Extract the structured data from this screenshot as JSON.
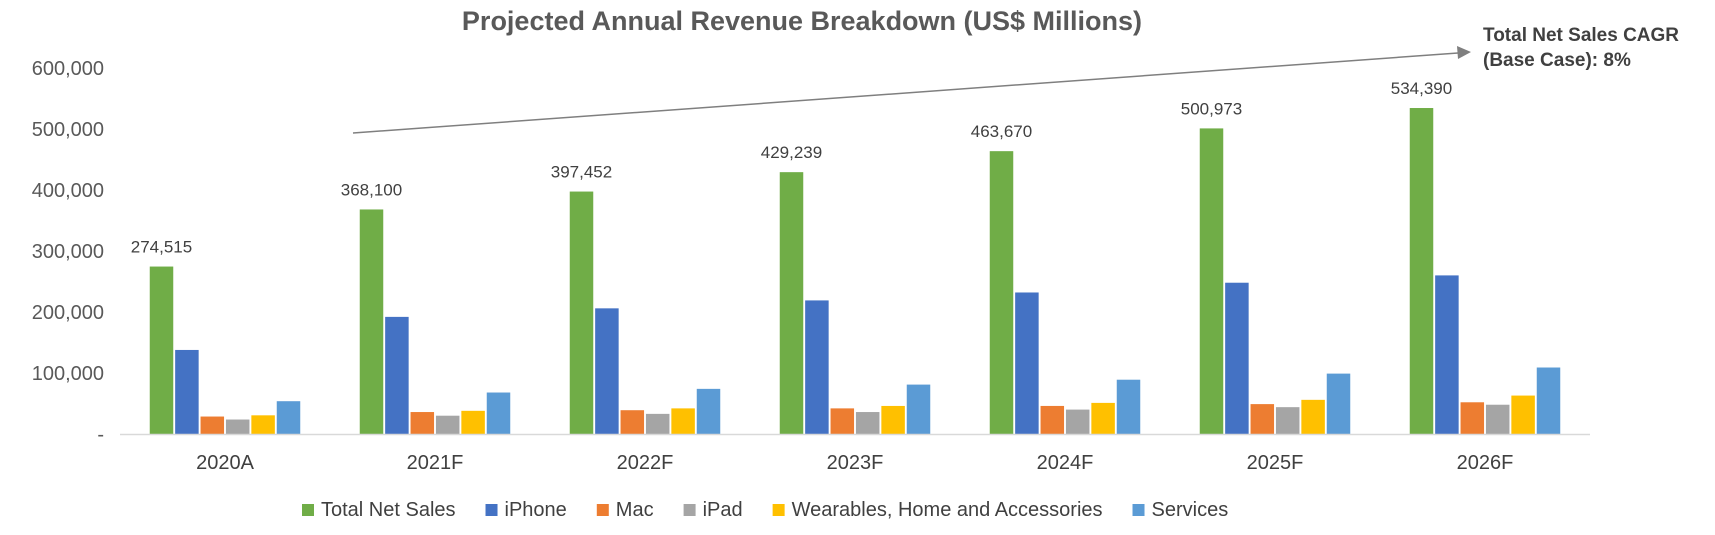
{
  "chart_data": {
    "type": "bar",
    "title": "Projected Annual Revenue Breakdown (US$ Millions)",
    "categories": [
      "2020A",
      "2021F",
      "2022F",
      "2023F",
      "2024F",
      "2025F",
      "2026F"
    ],
    "series": [
      {
        "name": "Total Net Sales",
        "color": "#70AD47",
        "values": [
          274515,
          368100,
          397452,
          429239,
          463670,
          500973,
          534390
        ]
      },
      {
        "name": "iPhone",
        "color": "#4472C4",
        "values": [
          137781,
          192000,
          206000,
          219000,
          232000,
          248000,
          260000
        ]
      },
      {
        "name": "Mac",
        "color": "#ED7D31",
        "values": [
          28622,
          36000,
          39000,
          42000,
          46000,
          49000,
          52000
        ]
      },
      {
        "name": "iPad",
        "color": "#A5A5A5",
        "values": [
          23724,
          30000,
          33000,
          36000,
          40000,
          44000,
          48000
        ]
      },
      {
        "name": "Wearables, Home and Accessories",
        "color": "#FFC000",
        "values": [
          30620,
          38000,
          42000,
          46000,
          51000,
          56000,
          63000
        ]
      },
      {
        "name": "Services",
        "color": "#5B9BD5",
        "values": [
          53768,
          68000,
          74000,
          81000,
          89000,
          99000,
          109000
        ]
      }
    ],
    "data_labels": [
      "274,515",
      "368,100",
      "397,452",
      "429,239",
      "463,670",
      "500,973",
      "534,390"
    ],
    "y_ticks": [
      "-",
      "100,000",
      "200,000",
      "300,000",
      "400,000",
      "500,000",
      "600,000"
    ],
    "ylim": [
      0,
      600000
    ],
    "grid": false,
    "legend_position": "bottom",
    "annotation": {
      "line1": "Total Net Sales CAGR",
      "line2": "(Base Case): 8%"
    }
  }
}
